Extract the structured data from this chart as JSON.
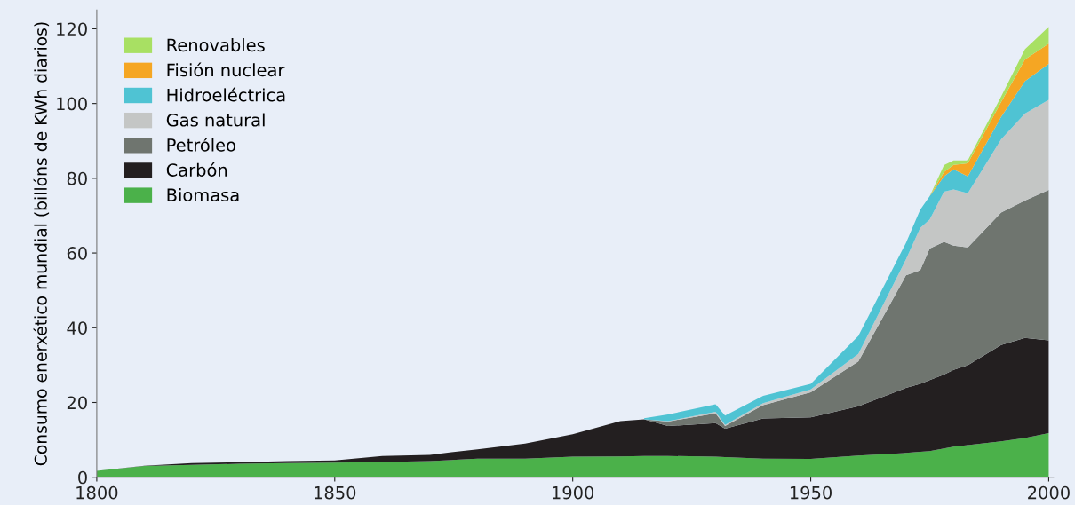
{
  "chart_data": {
    "type": "area",
    "stacked": true,
    "ylabel": "Consumo enerxético mundial (billóns de KWh diarios)",
    "x": [
      1800,
      1810,
      1820,
      1830,
      1840,
      1850,
      1860,
      1870,
      1880,
      1890,
      1900,
      1910,
      1915,
      1920,
      1930,
      1932,
      1940,
      1950,
      1960,
      1970,
      1973,
      1975,
      1978,
      1980,
      1983,
      1990,
      1995,
      2000
    ],
    "series": [
      {
        "name": "Biomasa",
        "color": "#4bb14a",
        "values": [
          1.7,
          3.0,
          3.3,
          3.6,
          3.8,
          3.9,
          4.1,
          4.3,
          5.0,
          5.0,
          5.5,
          5.6,
          5.7,
          5.7,
          5.5,
          5.4,
          5.0,
          4.9,
          5.8,
          6.5,
          6.8,
          7.0,
          7.7,
          8.2,
          8.6,
          9.6,
          10.5,
          11.8
        ]
      },
      {
        "name": "Carbón",
        "color": "#231f20",
        "values": [
          0,
          0.1,
          0.5,
          0.4,
          0.5,
          0.6,
          1.6,
          1.7,
          2.5,
          4.0,
          6.0,
          9.4,
          9.8,
          8.0,
          9.0,
          7.6,
          10.7,
          11.1,
          13.2,
          17.4,
          18.2,
          19.0,
          19.8,
          20.5,
          21.4,
          25.8,
          26.8,
          24.8
        ]
      },
      {
        "name": "Petróleo",
        "color": "#6f756f",
        "values": [
          null,
          null,
          null,
          null,
          null,
          null,
          null,
          null,
          null,
          null,
          null,
          null,
          0,
          1.2,
          2.6,
          0.7,
          3.6,
          6.7,
          12.0,
          30.1,
          30.4,
          35.2,
          35.5,
          33.3,
          31.5,
          35.4,
          36.7,
          40.3
        ]
      },
      {
        "name": "Gas natural",
        "color": "#c4c6c5",
        "values": [
          null,
          null,
          null,
          null,
          null,
          null,
          null,
          null,
          null,
          null,
          null,
          null,
          0,
          0.1,
          0.4,
          0.3,
          0.5,
          0.8,
          2.0,
          4.3,
          11.3,
          7.8,
          13.4,
          15.0,
          14.5,
          19.6,
          23.3,
          24.1
        ]
      },
      {
        "name": "Hidroeléctrica",
        "color": "#4fc3d3",
        "values": [
          null,
          null,
          null,
          null,
          null,
          null,
          null,
          null,
          null,
          null,
          null,
          null,
          0.3,
          1.8,
          2.0,
          2.5,
          2.0,
          1.5,
          4.8,
          4.4,
          4.9,
          6.2,
          4.1,
          5.4,
          4.5,
          6.0,
          8.7,
          9.6
        ]
      },
      {
        "name": "Fisión nuclear",
        "color": "#f5a623",
        "values": [
          null,
          null,
          null,
          null,
          null,
          null,
          null,
          null,
          null,
          null,
          null,
          null,
          null,
          null,
          null,
          null,
          null,
          null,
          null,
          null,
          null,
          0,
          1.2,
          1.2,
          3.5,
          4.0,
          5.8,
          5.4
        ]
      },
      {
        "name": "Renovables",
        "color": "#a8e063",
        "values": [
          null,
          null,
          null,
          null,
          null,
          null,
          null,
          null,
          null,
          null,
          null,
          null,
          null,
          null,
          null,
          null,
          null,
          null,
          null,
          null,
          null,
          0,
          1.8,
          1.2,
          0.8,
          1.5,
          2.7,
          4.5
        ]
      }
    ],
    "xlim": [
      1800,
      2001
    ],
    "ylim": [
      0,
      125
    ],
    "xticks": [
      1800,
      1850,
      1900,
      1950,
      2000
    ],
    "yticks": [
      0,
      20,
      40,
      60,
      80,
      100,
      120
    ],
    "grid": false,
    "legend": "top left"
  }
}
